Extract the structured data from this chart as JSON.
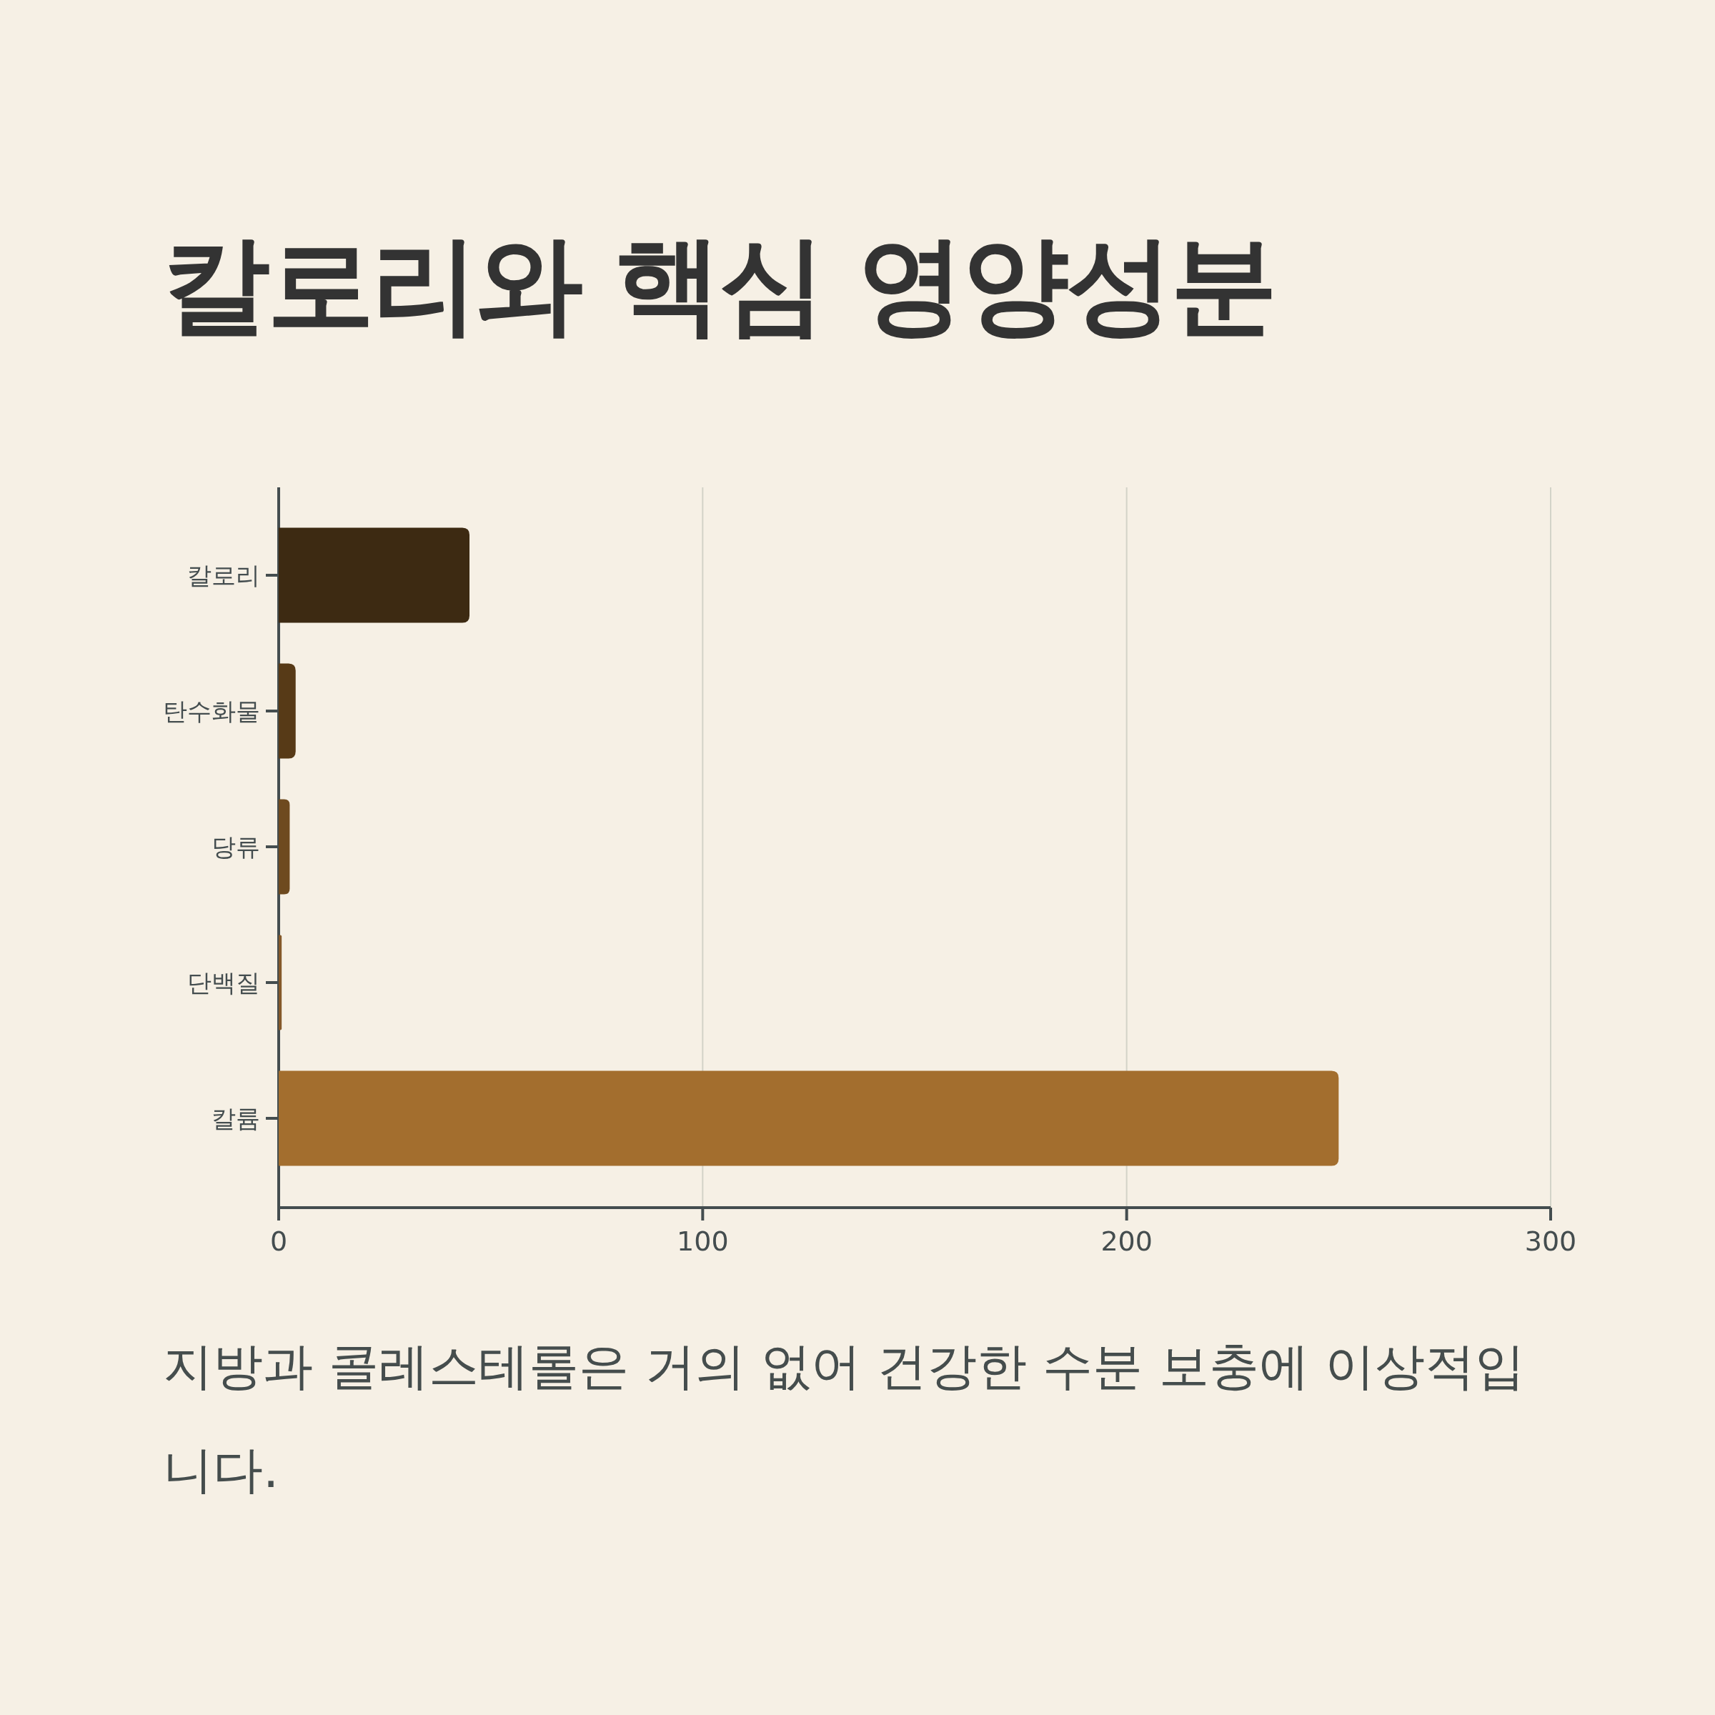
{
  "chart_data": {
    "type": "bar",
    "orientation": "horizontal",
    "title": "칼로리와 핵심 영양성분",
    "categories": [
      "칼로리",
      "탄수화물",
      "당류",
      "단백질",
      "칼륨"
    ],
    "values": [
      45,
      4,
      2.6,
      0.7,
      250
    ],
    "colors": [
      "#3d2a12",
      "#573a17",
      "#6e4a1f",
      "#85592a",
      "#a36e2e"
    ],
    "xlim": [
      0,
      300
    ],
    "xticks": [
      0,
      100,
      200,
      300
    ],
    "grid": "x",
    "annotations": [
      "지방과 콜레스테롤은 거의 없어 건강한 수분 보충에 이상적입니다."
    ]
  }
}
